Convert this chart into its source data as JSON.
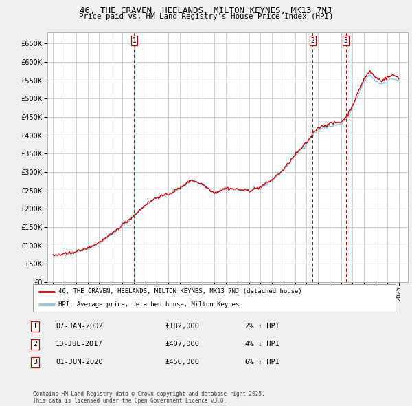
{
  "title": "46, THE CRAVEN, HEELANDS, MILTON KEYNES, MK13 7NJ",
  "subtitle": "Price paid vs. HM Land Registry's House Price Index (HPI)",
  "ylim": [
    0,
    680000
  ],
  "ytick_values": [
    0,
    50000,
    100000,
    150000,
    200000,
    250000,
    300000,
    350000,
    400000,
    450000,
    500000,
    550000,
    600000,
    650000
  ],
  "xmin": 1994.5,
  "xmax": 2025.8,
  "transactions": [
    {
      "num": 1,
      "date": "07-JAN-2002",
      "price": 182000,
      "pct": "2%",
      "direction": "↑",
      "x_year": 2002.04
    },
    {
      "num": 2,
      "date": "10-JUL-2017",
      "price": 407000,
      "pct": "4%",
      "direction": "↓",
      "x_year": 2017.54
    },
    {
      "num": 3,
      "date": "01-JUN-2020",
      "price": 450000,
      "pct": "6%",
      "direction": "↑",
      "x_year": 2020.42
    }
  ],
  "legend_label_red": "46, THE CRAVEN, HEELANDS, MILTON KEYNES, MK13 7NJ (detached house)",
  "legend_label_blue": "HPI: Average price, detached house, Milton Keynes",
  "footer": "Contains HM Land Registry data © Crown copyright and database right 2025.\nThis data is licensed under the Open Government Licence v3.0.",
  "bg_color": "#f0f0f0",
  "plot_bg_color": "#ffffff",
  "red_color": "#cc0000",
  "blue_color": "#90c8e0",
  "grid_color": "#cccccc",
  "dashed_color": "#cc0000"
}
